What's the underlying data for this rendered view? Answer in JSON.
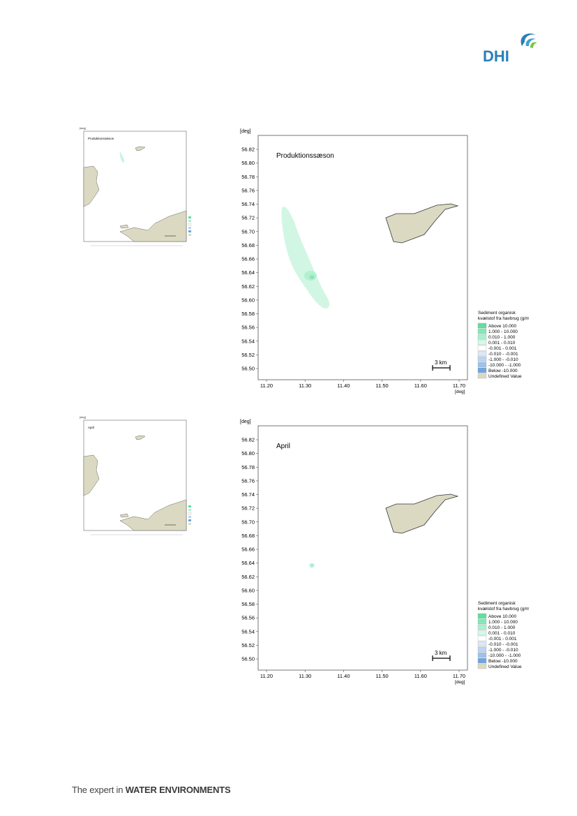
{
  "brand": {
    "name": "DHI",
    "tagline_prefix": "The expert in",
    "tagline_emphasis": "WATER ENVIRONMENTS"
  },
  "colors": {
    "land": "#dcd9c3",
    "brand_blue": "#2a7fb8",
    "brand_green": "#7cc242"
  },
  "legend": {
    "title_line1": "Sediment organisk",
    "title_line2": "kvælstof fra havbrug (g/m2)",
    "entries": [
      {
        "label": "Above    10.000",
        "color": "#5fdfa0"
      },
      {
        "label": "1.000 -  10.000",
        "color": "#83e8b8"
      },
      {
        "label": "0.010 -   1.000",
        "color": "#abf0ce"
      },
      {
        "label": "0.001 -   0.010",
        "color": "#d6f8e7"
      },
      {
        "label": "-0.001 -   0.001",
        "color": "#ffffff"
      },
      {
        "label": "-0.010 -  -0.001",
        "color": "#dce8f6"
      },
      {
        "label": "-1.000 -  -0.010",
        "color": "#bcd5f0"
      },
      {
        "label": "-10.000 -  -1.000",
        "color": "#9ec2ea"
      },
      {
        "label": "Below   -10.000",
        "color": "#6fa5e0"
      },
      {
        "label": "Undefined Value",
        "color": "#dcd9c3"
      }
    ]
  },
  "maps": [
    {
      "title": "Produktionssæson",
      "deg_label": "[deg]",
      "y_ticks": [
        "56.82",
        "56.80",
        "56.78",
        "56.76",
        "56.74",
        "56.72",
        "56.70",
        "56.68",
        "56.66",
        "56.64",
        "56.62",
        "56.60",
        "56.58",
        "56.56",
        "56.54",
        "56.52",
        "56.50"
      ],
      "x_ticks": [
        "11.20",
        "11.30",
        "11.40",
        "11.50",
        "11.60",
        "11.70"
      ],
      "scale_bar": "3 km"
    },
    {
      "title": "April",
      "deg_label": "[deg]",
      "y_ticks": [
        "56.82",
        "56.80",
        "56.78",
        "56.76",
        "56.74",
        "56.72",
        "56.70",
        "56.68",
        "56.66",
        "56.64",
        "56.62",
        "56.60",
        "56.58",
        "56.56",
        "56.54",
        "56.52",
        "56.50"
      ],
      "x_ticks": [
        "11.20",
        "11.30",
        "11.40",
        "11.50",
        "11.60",
        "11.70"
      ],
      "scale_bar": "3 km"
    }
  ]
}
